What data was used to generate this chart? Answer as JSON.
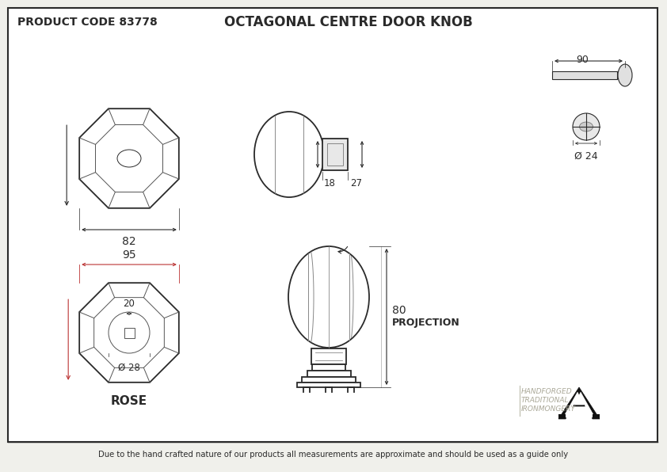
{
  "title": "OCTAGONAL CENTRE DOOR KNOB",
  "product_code": "PRODUCT CODE 83778",
  "bg_color": "#f0f0eb",
  "line_color": "#2a2a2a",
  "footer_text": "Due to the hand crafted nature of our products all measurements are approximate and should be used as a guide only",
  "brand_text1": "HANDFORGED",
  "brand_text2": "TRADITIONAL",
  "brand_text3": "IRONMONGERY",
  "dim_82": "82",
  "dim_95": "95",
  "dim_18": "18",
  "dim_27": "27",
  "dim_80": "80",
  "dim_proj": "PROJECTION",
  "dim_90": "90",
  "dim_24": "Ø 24",
  "dim_20": "20",
  "dim_28": "Ø 28",
  "rose_label": "ROSE"
}
